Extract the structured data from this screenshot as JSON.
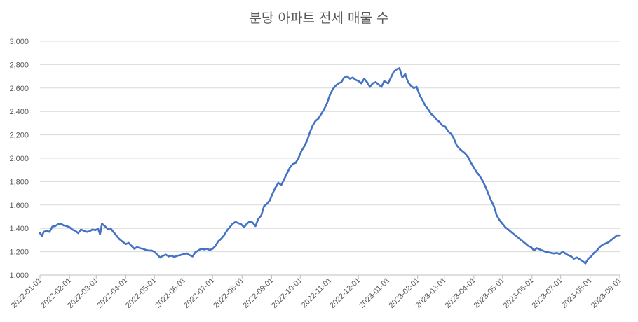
{
  "chart_data": {
    "type": "line",
    "title": "분당 아파트 전세 매물 수",
    "xlabel": "",
    "ylabel": "",
    "ylim": [
      1000,
      3000
    ],
    "yticks": [
      1000,
      1200,
      1400,
      1600,
      1800,
      2000,
      2200,
      2400,
      2600,
      2800,
      3000
    ],
    "ytick_labels": [
      "1,000",
      "1,200",
      "1,400",
      "1,600",
      "1,800",
      "2,000",
      "2,200",
      "2,400",
      "2,600",
      "2,800",
      "3,000"
    ],
    "xlim": [
      "2022-01-01",
      "2023-09-01"
    ],
    "xtick_labels": [
      "2022-01-01",
      "2022-02-01",
      "2022-03-01",
      "2022-04-01",
      "2022-05-01",
      "2022-06-01",
      "2022-07-01",
      "2022-08-01",
      "2022-09-01",
      "2022-10-01",
      "2022-11-01",
      "2022-12-01",
      "2023-01-01",
      "2023-02-01",
      "2023-03-01",
      "2023-04-01",
      "2023-05-01",
      "2023-06-01",
      "2023-07-01",
      "2023-08-01",
      "2023-09-01"
    ],
    "grid": true,
    "legend": "none",
    "series_color": "#4472c4",
    "series": [
      {
        "values": [
          [
            "2022-01-01",
            1360
          ],
          [
            "2022-01-03",
            1335
          ],
          [
            "2022-01-05",
            1370
          ],
          [
            "2022-01-08",
            1380
          ],
          [
            "2022-01-11",
            1370
          ],
          [
            "2022-01-14",
            1415
          ],
          [
            "2022-01-17",
            1420
          ],
          [
            "2022-01-20",
            1435
          ],
          [
            "2022-01-23",
            1440
          ],
          [
            "2022-01-26",
            1425
          ],
          [
            "2022-01-29",
            1420
          ],
          [
            "2022-02-01",
            1410
          ],
          [
            "2022-02-04",
            1390
          ],
          [
            "2022-02-07",
            1380
          ],
          [
            "2022-02-10",
            1360
          ],
          [
            "2022-02-13",
            1390
          ],
          [
            "2022-02-16",
            1380
          ],
          [
            "2022-02-19",
            1370
          ],
          [
            "2022-02-22",
            1375
          ],
          [
            "2022-02-25",
            1390
          ],
          [
            "2022-02-28",
            1385
          ],
          [
            "2022-03-03",
            1395
          ],
          [
            "2022-03-05",
            1350
          ],
          [
            "2022-03-07",
            1440
          ],
          [
            "2022-03-10",
            1420
          ],
          [
            "2022-03-13",
            1395
          ],
          [
            "2022-03-16",
            1400
          ],
          [
            "2022-03-19",
            1370
          ],
          [
            "2022-03-22",
            1340
          ],
          [
            "2022-03-25",
            1310
          ],
          [
            "2022-03-28",
            1290
          ],
          [
            "2022-04-01",
            1265
          ],
          [
            "2022-04-04",
            1275
          ],
          [
            "2022-04-07",
            1250
          ],
          [
            "2022-04-10",
            1225
          ],
          [
            "2022-04-13",
            1240
          ],
          [
            "2022-04-16",
            1230
          ],
          [
            "2022-04-19",
            1225
          ],
          [
            "2022-04-22",
            1215
          ],
          [
            "2022-04-25",
            1210
          ],
          [
            "2022-04-28",
            1210
          ],
          [
            "2022-05-01",
            1200
          ],
          [
            "2022-05-04",
            1175
          ],
          [
            "2022-05-07",
            1150
          ],
          [
            "2022-05-10",
            1165
          ],
          [
            "2022-05-13",
            1175
          ],
          [
            "2022-05-16",
            1160
          ],
          [
            "2022-05-19",
            1165
          ],
          [
            "2022-05-22",
            1155
          ],
          [
            "2022-05-25",
            1165
          ],
          [
            "2022-05-28",
            1170
          ],
          [
            "2022-06-01",
            1180
          ],
          [
            "2022-06-04",
            1185
          ],
          [
            "2022-06-07",
            1170
          ],
          [
            "2022-06-10",
            1160
          ],
          [
            "2022-06-13",
            1195
          ],
          [
            "2022-06-16",
            1210
          ],
          [
            "2022-06-19",
            1225
          ],
          [
            "2022-06-22",
            1220
          ],
          [
            "2022-06-25",
            1225
          ],
          [
            "2022-06-28",
            1215
          ],
          [
            "2022-07-01",
            1225
          ],
          [
            "2022-07-04",
            1250
          ],
          [
            "2022-07-07",
            1290
          ],
          [
            "2022-07-10",
            1310
          ],
          [
            "2022-07-13",
            1340
          ],
          [
            "2022-07-16",
            1380
          ],
          [
            "2022-07-19",
            1410
          ],
          [
            "2022-07-22",
            1440
          ],
          [
            "2022-07-25",
            1455
          ],
          [
            "2022-07-28",
            1445
          ],
          [
            "2022-07-31",
            1435
          ],
          [
            "2022-08-03",
            1410
          ],
          [
            "2022-08-06",
            1440
          ],
          [
            "2022-08-09",
            1460
          ],
          [
            "2022-08-12",
            1450
          ],
          [
            "2022-08-15",
            1420
          ],
          [
            "2022-08-18",
            1480
          ],
          [
            "2022-08-21",
            1510
          ],
          [
            "2022-08-24",
            1590
          ],
          [
            "2022-08-27",
            1610
          ],
          [
            "2022-08-30",
            1640
          ],
          [
            "2022-09-02",
            1700
          ],
          [
            "2022-09-05",
            1750
          ],
          [
            "2022-09-08",
            1790
          ],
          [
            "2022-09-11",
            1770
          ],
          [
            "2022-09-14",
            1820
          ],
          [
            "2022-09-17",
            1870
          ],
          [
            "2022-09-20",
            1920
          ],
          [
            "2022-09-23",
            1950
          ],
          [
            "2022-09-26",
            1960
          ],
          [
            "2022-09-29",
            2000
          ],
          [
            "2022-10-02",
            2060
          ],
          [
            "2022-10-05",
            2100
          ],
          [
            "2022-10-08",
            2150
          ],
          [
            "2022-10-11",
            2220
          ],
          [
            "2022-10-14",
            2280
          ],
          [
            "2022-10-17",
            2320
          ],
          [
            "2022-10-20",
            2340
          ],
          [
            "2022-10-23",
            2380
          ],
          [
            "2022-10-26",
            2420
          ],
          [
            "2022-10-29",
            2470
          ],
          [
            "2022-11-01",
            2540
          ],
          [
            "2022-11-04",
            2590
          ],
          [
            "2022-11-07",
            2620
          ],
          [
            "2022-11-10",
            2640
          ],
          [
            "2022-11-13",
            2650
          ],
          [
            "2022-11-16",
            2690
          ],
          [
            "2022-11-19",
            2700
          ],
          [
            "2022-11-22",
            2680
          ],
          [
            "2022-11-25",
            2690
          ],
          [
            "2022-11-28",
            2670
          ],
          [
            "2022-12-01",
            2660
          ],
          [
            "2022-12-04",
            2640
          ],
          [
            "2022-12-07",
            2680
          ],
          [
            "2022-12-10",
            2650
          ],
          [
            "2022-12-13",
            2610
          ],
          [
            "2022-12-16",
            2640
          ],
          [
            "2022-12-19",
            2650
          ],
          [
            "2022-12-22",
            2630
          ],
          [
            "2022-12-25",
            2610
          ],
          [
            "2022-12-28",
            2660
          ],
          [
            "2023-01-01",
            2640
          ],
          [
            "2023-01-04",
            2690
          ],
          [
            "2023-01-07",
            2740
          ],
          [
            "2023-01-10",
            2760
          ],
          [
            "2023-01-13",
            2770
          ],
          [
            "2023-01-16",
            2690
          ],
          [
            "2023-01-19",
            2720
          ],
          [
            "2023-01-22",
            2650
          ],
          [
            "2023-01-25",
            2620
          ],
          [
            "2023-01-28",
            2600
          ],
          [
            "2023-01-31",
            2610
          ],
          [
            "2023-02-03",
            2540
          ],
          [
            "2023-02-06",
            2500
          ],
          [
            "2023-02-09",
            2450
          ],
          [
            "2023-02-12",
            2420
          ],
          [
            "2023-02-15",
            2380
          ],
          [
            "2023-02-18",
            2360
          ],
          [
            "2023-02-21",
            2330
          ],
          [
            "2023-02-24",
            2310
          ],
          [
            "2023-02-27",
            2280
          ],
          [
            "2023-03-02",
            2270
          ],
          [
            "2023-03-05",
            2230
          ],
          [
            "2023-03-08",
            2210
          ],
          [
            "2023-03-11",
            2170
          ],
          [
            "2023-03-14",
            2110
          ],
          [
            "2023-03-17",
            2080
          ],
          [
            "2023-03-20",
            2060
          ],
          [
            "2023-03-23",
            2040
          ],
          [
            "2023-03-26",
            2010
          ],
          [
            "2023-03-29",
            1960
          ],
          [
            "2023-04-01",
            1920
          ],
          [
            "2023-04-04",
            1880
          ],
          [
            "2023-04-07",
            1850
          ],
          [
            "2023-04-10",
            1810
          ],
          [
            "2023-04-13",
            1760
          ],
          [
            "2023-04-16",
            1700
          ],
          [
            "2023-04-19",
            1640
          ],
          [
            "2023-04-22",
            1590
          ],
          [
            "2023-04-25",
            1510
          ],
          [
            "2023-04-28",
            1470
          ],
          [
            "2023-05-01",
            1440
          ],
          [
            "2023-05-04",
            1410
          ],
          [
            "2023-05-07",
            1390
          ],
          [
            "2023-05-10",
            1370
          ],
          [
            "2023-05-13",
            1350
          ],
          [
            "2023-05-16",
            1330
          ],
          [
            "2023-05-19",
            1310
          ],
          [
            "2023-05-22",
            1290
          ],
          [
            "2023-05-25",
            1270
          ],
          [
            "2023-05-28",
            1250
          ],
          [
            "2023-05-31",
            1240
          ],
          [
            "2023-06-03",
            1210
          ],
          [
            "2023-06-06",
            1230
          ],
          [
            "2023-06-09",
            1220
          ],
          [
            "2023-06-12",
            1210
          ],
          [
            "2023-06-15",
            1200
          ],
          [
            "2023-06-18",
            1195
          ],
          [
            "2023-06-21",
            1190
          ],
          [
            "2023-06-24",
            1185
          ],
          [
            "2023-06-27",
            1190
          ],
          [
            "2023-06-30",
            1180
          ],
          [
            "2023-07-03",
            1200
          ],
          [
            "2023-07-06",
            1185
          ],
          [
            "2023-07-09",
            1170
          ],
          [
            "2023-07-12",
            1160
          ],
          [
            "2023-07-15",
            1140
          ],
          [
            "2023-07-18",
            1150
          ],
          [
            "2023-07-21",
            1135
          ],
          [
            "2023-07-24",
            1120
          ],
          [
            "2023-07-27",
            1100
          ],
          [
            "2023-07-30",
            1140
          ],
          [
            "2023-08-02",
            1160
          ],
          [
            "2023-08-05",
            1190
          ],
          [
            "2023-08-08",
            1210
          ],
          [
            "2023-08-11",
            1240
          ],
          [
            "2023-08-14",
            1260
          ],
          [
            "2023-08-17",
            1270
          ],
          [
            "2023-08-20",
            1280
          ],
          [
            "2023-08-23",
            1300
          ],
          [
            "2023-08-26",
            1320
          ],
          [
            "2023-08-29",
            1340
          ],
          [
            "2023-09-01",
            1340
          ]
        ]
      }
    ]
  }
}
